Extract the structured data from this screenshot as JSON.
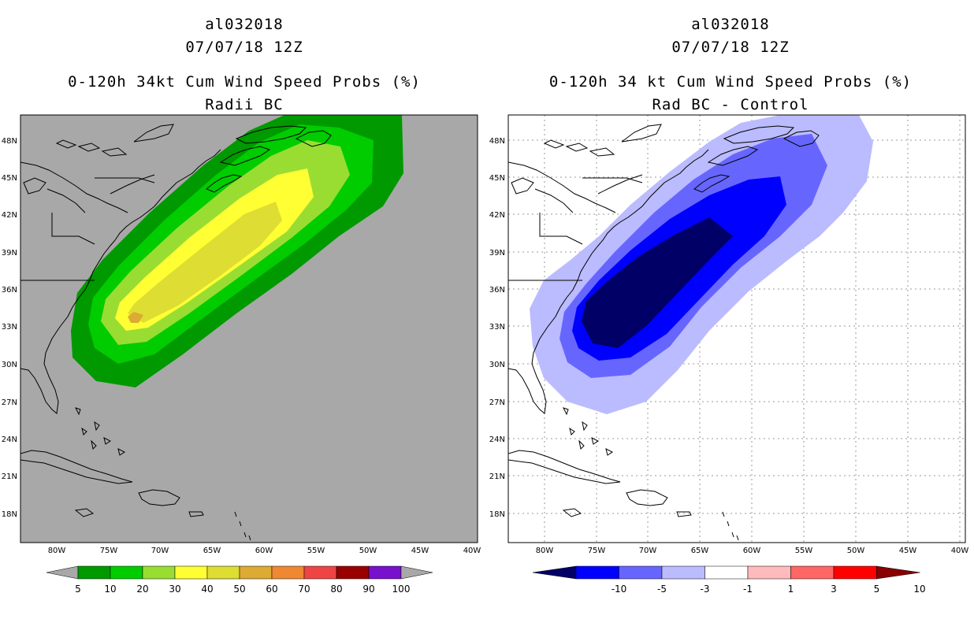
{
  "left_panel": {
    "storm_id": "al032018",
    "datetime": "07/07/18 12Z",
    "product": "0-120h 34kt Cum Wind Speed Probs (%)",
    "subtitle": "Radii BC",
    "colorbar": {
      "labels": [
        "5",
        "10",
        "20",
        "30",
        "40",
        "50",
        "60",
        "70",
        "80",
        "90",
        "100"
      ],
      "colors": [
        "#009900",
        "#00cc00",
        "#99dd33",
        "#ffff33",
        "#dddd33",
        "#ddaa33",
        "#ee8833",
        "#ee4444",
        "#990000",
        "#7711cc"
      ],
      "under_color": "#a8a8a8",
      "over_color": "#a8a8a8"
    },
    "background_color": "#a8a8a8"
  },
  "right_panel": {
    "storm_id": "al032018",
    "datetime": "07/07/18 12Z",
    "product": "0-120h 34 kt Cum Wind Speed Probs (%)",
    "subtitle": "Rad BC - Control",
    "colorbar": {
      "labels": [
        "-10",
        "-5",
        "-3",
        "-1",
        "1",
        "3",
        "5",
        "10"
      ],
      "colors": [
        "#0000ff",
        "#6666ff",
        "#bbbbff",
        "#ffffff",
        "#ffbbbb",
        "#ff6666",
        "#ff0000"
      ],
      "under_color": "#000066",
      "over_color": "#880000"
    },
    "background_color": "#ffffff"
  },
  "axes": {
    "lon_labels": [
      "80W",
      "75W",
      "70W",
      "65W",
      "60W",
      "55W",
      "50W",
      "45W",
      "40W"
    ],
    "lat_labels": [
      "48N",
      "45N",
      "42N",
      "39N",
      "36N",
      "33N",
      "30N",
      "27N",
      "24N",
      "21N",
      "18N"
    ]
  }
}
